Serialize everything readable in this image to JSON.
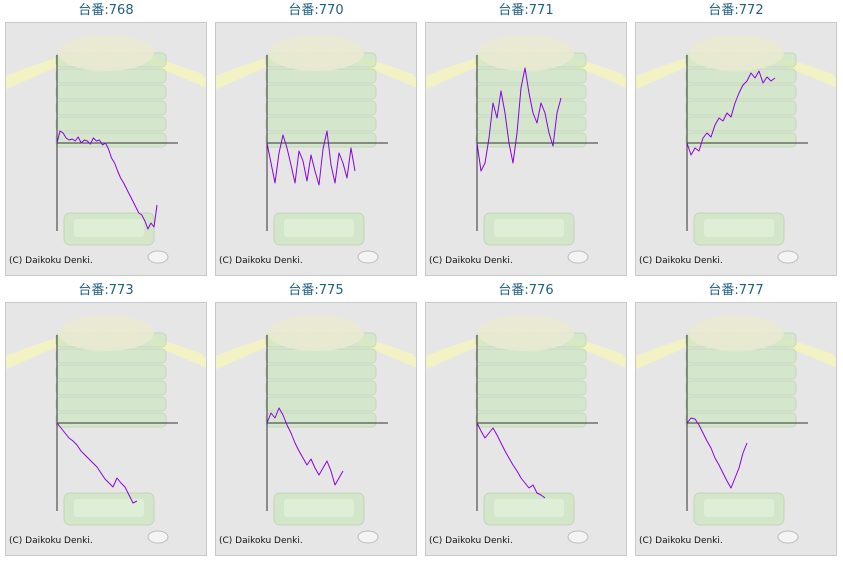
{
  "colors": {
    "line": "#8a00e6",
    "axis": "#333333",
    "title": "#1f5f86"
  },
  "copyright": "(C) Daikoku Denki.",
  "chart_data": [
    {
      "type": "line",
      "title": "台番:768",
      "y": [
        0,
        12,
        10,
        5,
        3,
        4,
        2,
        6,
        0,
        3,
        2,
        -1,
        5,
        2,
        3,
        -2,
        0,
        -6,
        -15,
        -20,
        -28,
        -35,
        -40,
        -46,
        -52,
        -58,
        -64,
        -70,
        -72,
        -78,
        -86,
        -80,
        -84,
        -62
      ]
    },
    {
      "type": "line",
      "title": "台番:770",
      "y": [
        0,
        -20,
        -40,
        -10,
        8,
        -5,
        -22,
        -40,
        -8,
        -18,
        -38,
        -12,
        -28,
        -42,
        -6,
        12,
        -22,
        -40,
        -10,
        -20,
        -35,
        -5,
        -28
      ]
    },
    {
      "type": "line",
      "title": "台番:771",
      "y": [
        0,
        -28,
        -20,
        5,
        40,
        25,
        52,
        30,
        0,
        -20,
        10,
        55,
        75,
        50,
        30,
        20,
        40,
        30,
        10,
        -3,
        30,
        45
      ]
    },
    {
      "type": "line",
      "title": "台番:772",
      "y": [
        0,
        -12,
        -5,
        -8,
        5,
        10,
        6,
        18,
        25,
        22,
        30,
        26,
        40,
        50,
        58,
        62,
        70,
        65,
        72,
        60,
        66,
        62,
        65
      ]
    },
    {
      "type": "line",
      "title": "台番:773",
      "y": [
        0,
        -5,
        -10,
        -15,
        -18,
        -22,
        -28,
        -32,
        -36,
        -40,
        -44,
        -50,
        -56,
        -60,
        -64,
        -55,
        -60,
        -64,
        -72,
        -80,
        -78
      ]
    },
    {
      "type": "line",
      "title": "台番:775",
      "y": [
        0,
        10,
        5,
        15,
        8,
        -2,
        -10,
        -20,
        -28,
        -35,
        -42,
        -36,
        -45,
        -52,
        -45,
        -38,
        -48,
        -62,
        -55,
        -48
      ]
    },
    {
      "type": "line",
      "title": "台番:776",
      "y": [
        0,
        -8,
        -15,
        -10,
        -5,
        -12,
        -20,
        -28,
        -35,
        -42,
        -48,
        -55,
        -60,
        -65,
        -62,
        -70,
        -72,
        -75
      ]
    },
    {
      "type": "line",
      "title": "台番:777",
      "y": [
        0,
        5,
        4,
        -2,
        -10,
        -18,
        -25,
        -35,
        -42,
        -50,
        -58,
        -65,
        -55,
        -45,
        -30,
        -20
      ]
    }
  ]
}
